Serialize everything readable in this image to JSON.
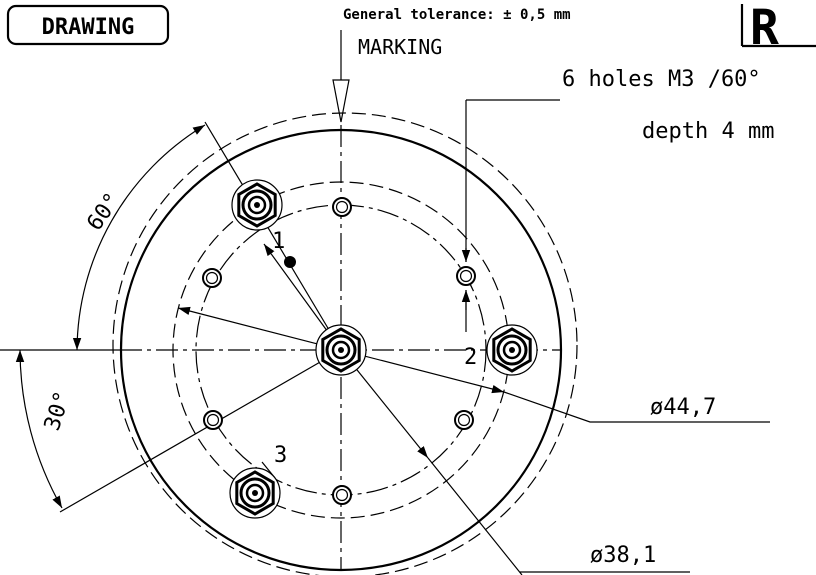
{
  "labels": {
    "drawing": "DRAWING",
    "tolerance": "General tolerance: ± 0,5 mm",
    "marking": "MARKING",
    "holes": "6 holes M3 /60°",
    "depth": "depth 4 mm",
    "brand": "R",
    "angle_60": "60°",
    "angle_30": "30°",
    "diameter_outer": "ø44,7",
    "diameter_inner": "ø38,1",
    "markers": [
      "1",
      "2",
      "3"
    ]
  }
}
